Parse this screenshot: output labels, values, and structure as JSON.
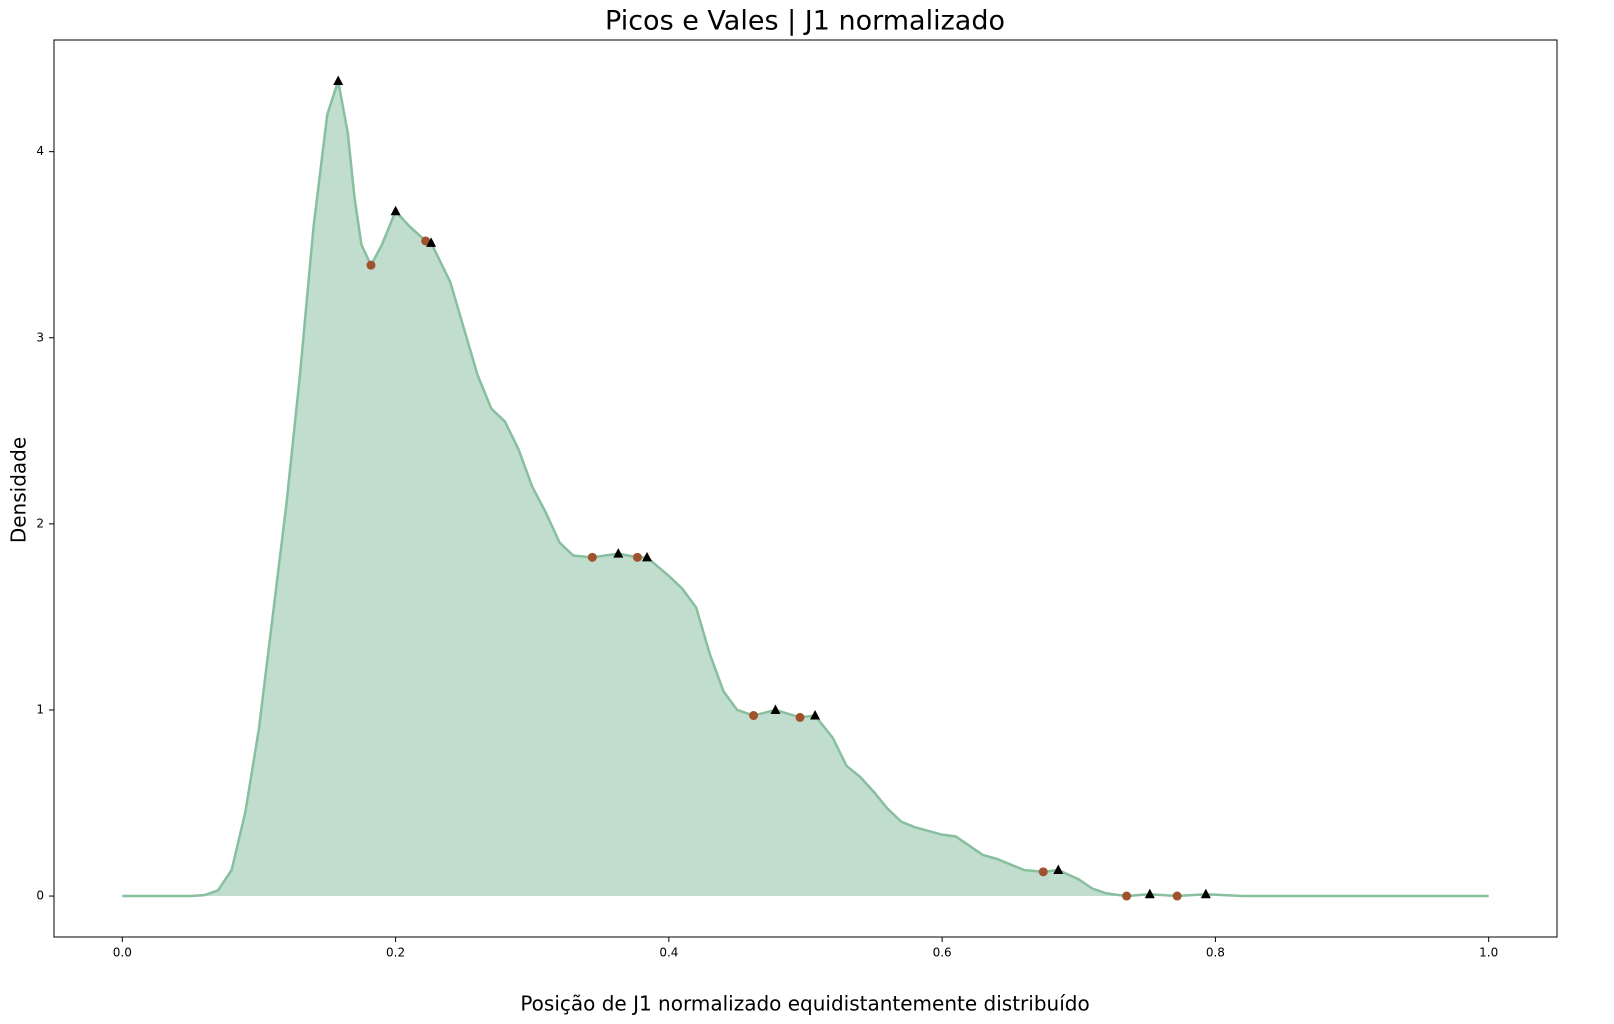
{
  "chart_data": {
    "type": "density",
    "title": "Picos e Vales | J1 normalizado",
    "xlabel": "Posição de J1 normalizado equidistantemente distribuído",
    "ylabel": "Densidade",
    "x": [
      0.0,
      0.05,
      0.06,
      0.07,
      0.08,
      0.09,
      0.1,
      0.11,
      0.12,
      0.13,
      0.14,
      0.15,
      0.158,
      0.165,
      0.17,
      0.175,
      0.182,
      0.19,
      0.2,
      0.21,
      0.222,
      0.226,
      0.24,
      0.25,
      0.26,
      0.27,
      0.28,
      0.29,
      0.3,
      0.31,
      0.32,
      0.33,
      0.344,
      0.363,
      0.377,
      0.384,
      0.4,
      0.41,
      0.42,
      0.43,
      0.44,
      0.45,
      0.462,
      0.478,
      0.496,
      0.507,
      0.52,
      0.53,
      0.54,
      0.55,
      0.56,
      0.57,
      0.58,
      0.59,
      0.6,
      0.61,
      0.62,
      0.63,
      0.64,
      0.65,
      0.66,
      0.674,
      0.685,
      0.7,
      0.71,
      0.72,
      0.735,
      0.752,
      0.772,
      0.793,
      0.82,
      0.9,
      1.0
    ],
    "values": [
      0,
      0,
      0.005,
      0.03,
      0.14,
      0.45,
      0.9,
      1.5,
      2.1,
      2.8,
      3.6,
      4.2,
      4.38,
      4.1,
      3.75,
      3.5,
      3.39,
      3.5,
      3.68,
      3.6,
      3.52,
      3.51,
      3.3,
      3.05,
      2.8,
      2.62,
      2.55,
      2.4,
      2.2,
      2.06,
      1.9,
      1.83,
      1.82,
      1.84,
      1.82,
      1.82,
      1.72,
      1.65,
      1.55,
      1.3,
      1.1,
      1.0,
      0.97,
      1.0,
      0.96,
      0.97,
      0.85,
      0.7,
      0.64,
      0.56,
      0.47,
      0.4,
      0.37,
      0.35,
      0.33,
      0.32,
      0.27,
      0.22,
      0.2,
      0.17,
      0.14,
      0.13,
      0.14,
      0.09,
      0.04,
      0.015,
      0.0,
      0.01,
      0.0,
      0.01,
      0.0,
      0,
      0
    ],
    "color": "#88bf9f",
    "fill_color": "#c0ddcd",
    "peaks": {
      "x": [
        0.158,
        0.2,
        0.226,
        0.363,
        0.384,
        0.478,
        0.507,
        0.685,
        0.752,
        0.793
      ],
      "values": [
        4.38,
        3.68,
        3.51,
        1.84,
        1.82,
        1.0,
        0.97,
        0.14,
        0.01,
        0.01
      ],
      "color": "#000000",
      "marker": "triangle"
    },
    "valleys": {
      "x": [
        0.182,
        0.222,
        0.344,
        0.377,
        0.462,
        0.496,
        0.674,
        0.735,
        0.772
      ],
      "values": [
        3.39,
        3.52,
        1.82,
        1.82,
        0.97,
        0.96,
        0.13,
        0.0,
        0.0
      ],
      "color": "#a0522d",
      "marker": "circle"
    },
    "xlim": [
      -0.05,
      1.05
    ],
    "ylim": [
      -0.22,
      4.6
    ],
    "xticks": [
      {
        "value": 0,
        "label": "0.0"
      },
      0.2,
      0.4,
      0.6,
      0.8,
      {
        "value": 1,
        "label": "1.0"
      }
    ],
    "yticks": [
      0,
      1,
      2,
      3,
      4
    ]
  }
}
